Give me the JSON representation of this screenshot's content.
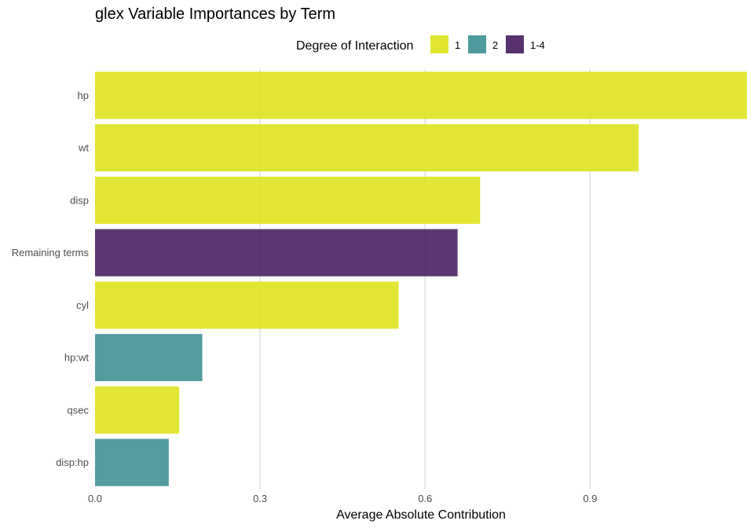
{
  "chart_data": {
    "type": "bar",
    "orientation": "horizontal",
    "title": "glex Variable Importances by Term",
    "xlabel": "Average Absolute Contribution",
    "ylabel": "",
    "xlim": [
      0,
      1.185
    ],
    "xticks": [
      "0.0",
      "0.3",
      "0.6",
      "0.9"
    ],
    "xtick_values": [
      0,
      0.3,
      0.6,
      0.9
    ],
    "grid": "vertical major lines",
    "legend": {
      "title": "Degree of Interaction",
      "position": "top",
      "entries": [
        {
          "label": "1",
          "color": "#dde318"
        },
        {
          "label": "2",
          "color": "#3b8f92"
        },
        {
          "label": "1-4",
          "color": "#461c5e"
        }
      ]
    },
    "categories": [
      "hp",
      "wt",
      "disp",
      "Remaining terms",
      "cyl",
      "hp:wt",
      "qsec",
      "disp:hp"
    ],
    "values": [
      1.185,
      0.988,
      0.7,
      0.659,
      0.552,
      0.195,
      0.153,
      0.134
    ],
    "degree": [
      "1",
      "1",
      "1",
      "1-4",
      "1",
      "2",
      "1",
      "2"
    ]
  }
}
